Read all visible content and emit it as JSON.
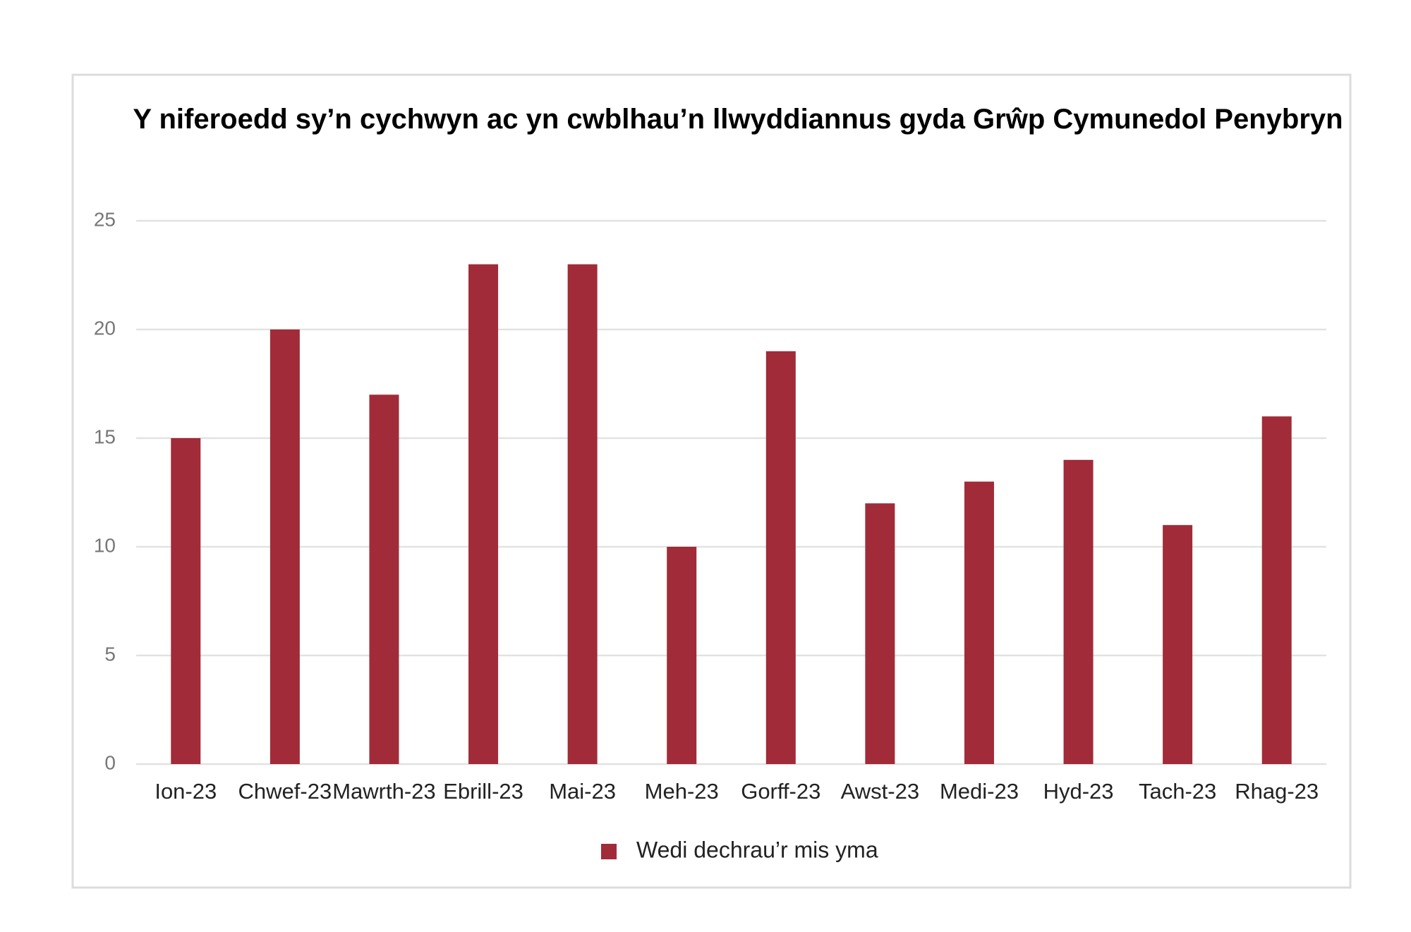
{
  "chart_data": {
    "type": "bar",
    "title": "Y niferoedd sy’n cychwyn ac yn cwblhau’n llwyddiannus gyda Grŵp Cymunedol Penybryn",
    "categories": [
      "Ion-23",
      "Chwef-23",
      "Mawrth-23",
      "Ebrill-23",
      "Mai-23",
      "Meh-23",
      "Gorff-23",
      "Awst-23",
      "Medi-23",
      "Hyd-23",
      "Tach-23",
      "Rhag-23"
    ],
    "series": [
      {
        "name": "Wedi dechrau’r mis yma",
        "color": "#a12b38",
        "values": [
          15,
          20,
          17,
          23,
          23,
          10,
          19,
          12,
          13,
          14,
          11,
          16
        ]
      }
    ],
    "ylim": [
      0,
      25
    ],
    "yticks": [
      0,
      5,
      10,
      15,
      20,
      25
    ],
    "grid": true,
    "legend": "bottom"
  }
}
